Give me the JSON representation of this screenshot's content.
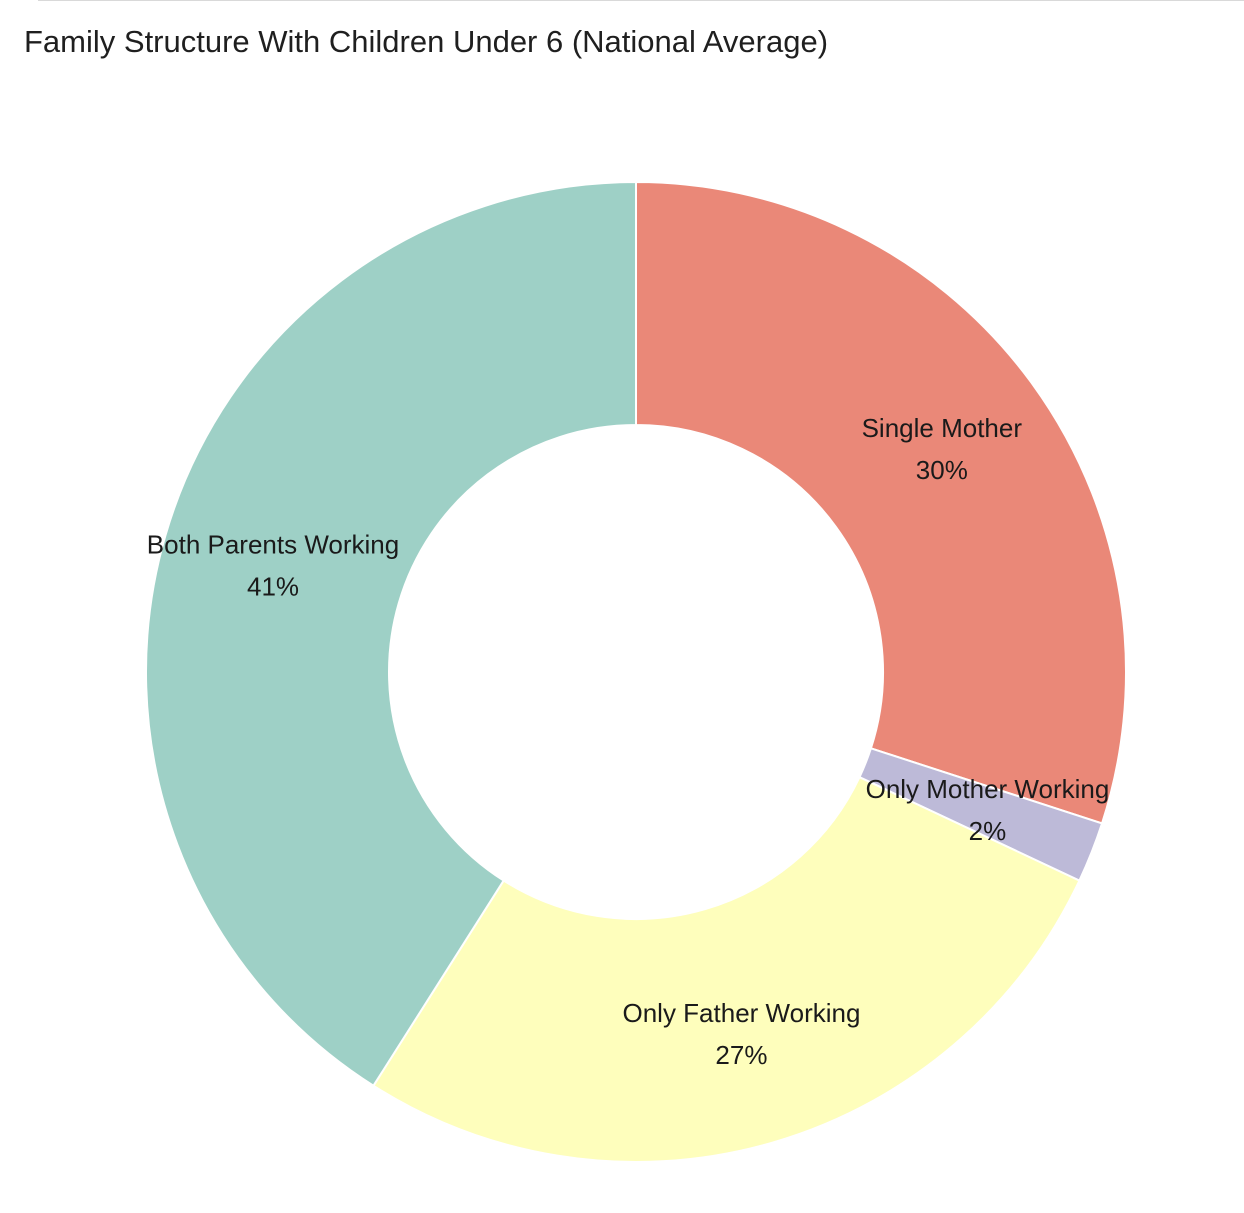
{
  "chart_data": {
    "type": "pie",
    "title": "Family Structure With Children Under 6 (National Average)",
    "donut": true,
    "start_angle_deg": 0,
    "direction": "clockwise",
    "labels": [
      "Single Mother",
      "Only Mother Working",
      "Only Father Working",
      "Both Parents Working"
    ],
    "values": [
      30,
      2,
      27,
      41
    ],
    "value_labels": [
      "30%",
      "2%",
      "27%",
      "41%"
    ],
    "colors": [
      "#EA8878",
      "#BDBAD8",
      "#FEFEBC",
      "#9ED0C6"
    ],
    "legend": "none"
  }
}
